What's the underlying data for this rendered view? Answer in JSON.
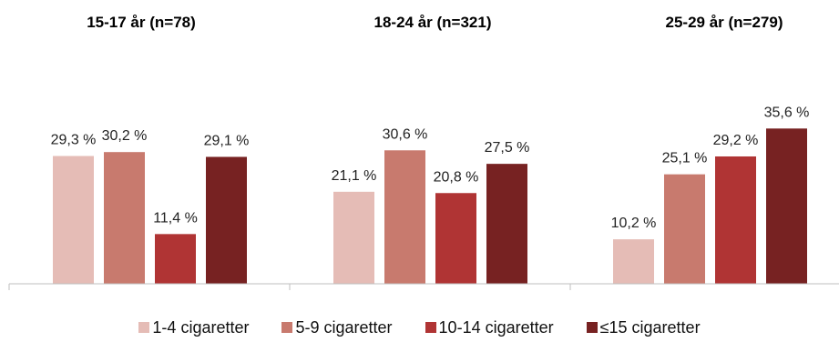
{
  "chart_data": {
    "type": "bar",
    "groups": [
      "15-17 år (n=78)",
      "18-24 år (n=321)",
      "25-29 år (n=279)"
    ],
    "series": [
      {
        "name": "1-4 cigaretter",
        "color": "#e5bcb6",
        "values": [
          29.3,
          21.1,
          10.2
        ],
        "labels": [
          "29,3 %",
          "21,1 %",
          "10,2 %"
        ]
      },
      {
        "name": "5-9 cigaretter",
        "color": "#c87a6e",
        "values": [
          30.2,
          30.6,
          25.1
        ],
        "labels": [
          "30,2 %",
          "30,6 %",
          "25,1 %"
        ]
      },
      {
        "name": "10-14 cigaretter",
        "color": "#b03434",
        "values": [
          11.4,
          20.8,
          29.2
        ],
        "labels": [
          "11,4 %",
          "20,8 %",
          "29,2 %"
        ]
      },
      {
        "name": "≤15 cigaretter",
        "color": "#772222",
        "values": [
          29.1,
          27.5,
          35.6
        ],
        "labels": [
          "29,1 %",
          "27,5 %",
          "35,6 %"
        ]
      }
    ],
    "ylim": [
      0,
      40
    ],
    "grid": false,
    "legend_position": "bottom"
  }
}
